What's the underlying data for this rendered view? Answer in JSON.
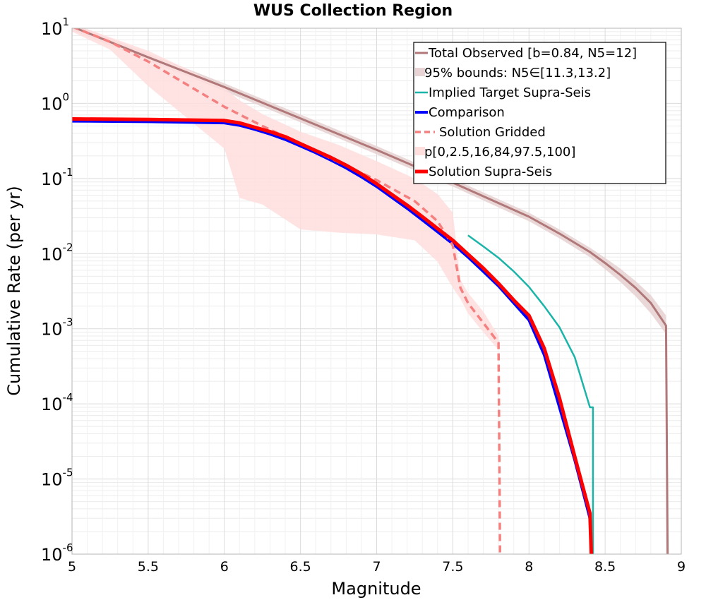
{
  "chart_data": {
    "type": "line",
    "title": "WUS Collection Region",
    "xlabel": "Magnitude",
    "ylabel": "Cumulative Rate (per yr)",
    "xlim": [
      5,
      9
    ],
    "ylim": [
      1e-06,
      10
    ],
    "yscale": "log",
    "grid": true,
    "legend_position": "top-right",
    "x_ticks": [
      "5",
      "5.5",
      "6",
      "6.5",
      "7",
      "7.5",
      "8",
      "8.5",
      "9"
    ],
    "y_ticks": [
      {
        "base": "10",
        "exp": "-6",
        "value": 1e-06
      },
      {
        "base": "10",
        "exp": "-5",
        "value": 1e-05
      },
      {
        "base": "10",
        "exp": "-4",
        "value": 0.0001
      },
      {
        "base": "10",
        "exp": "-3",
        "value": 0.001
      },
      {
        "base": "10",
        "exp": "-2",
        "value": 0.01
      },
      {
        "base": "10",
        "exp": "-1",
        "value": 0.1
      },
      {
        "base": "10",
        "exp": "0",
        "value": 1
      },
      {
        "base": "10",
        "exp": "1",
        "value": 10
      }
    ],
    "series": [
      {
        "name": "Total Observed [b=0.84, N5=12]",
        "color": "#b07878",
        "style": "solid",
        "width": 3,
        "x": [
          5.0,
          5.5,
          6.0,
          6.5,
          7.0,
          7.5,
          8.0,
          8.2,
          8.4,
          8.5,
          8.6,
          8.7,
          8.8,
          8.9,
          8.91,
          8.95
        ],
        "y": [
          10.5,
          4.1,
          1.65,
          0.63,
          0.24,
          0.088,
          0.031,
          0.0185,
          0.0105,
          0.0075,
          0.0052,
          0.0035,
          0.0022,
          0.0011,
          1e-06,
          1e-07
        ]
      },
      {
        "name": "95% bounds: N5∈[11.3,13.2]",
        "color": "#e8d4d4",
        "type": "band",
        "x": [
          5.0,
          5.5,
          6.0,
          6.5,
          7.0,
          7.5,
          8.0,
          8.2,
          8.4,
          8.5,
          8.6,
          8.7,
          8.8,
          8.9
        ],
        "lower": [
          9.4,
          3.7,
          1.45,
          0.56,
          0.21,
          0.078,
          0.027,
          0.016,
          0.009,
          0.0062,
          0.0042,
          0.0027,
          0.0016,
          0.00085
        ],
        "upper": [
          11.6,
          4.6,
          1.85,
          0.71,
          0.27,
          0.099,
          0.035,
          0.021,
          0.012,
          0.0088,
          0.0063,
          0.0043,
          0.0028,
          0.0015
        ]
      },
      {
        "name": "Implied Target Supra-Seis",
        "color": "#1ab4a8",
        "style": "solid",
        "width": 2.5,
        "x": [
          7.6,
          7.7,
          7.8,
          7.9,
          8.0,
          8.1,
          8.2,
          8.3,
          8.4,
          8.42,
          8.42
        ],
        "y": [
          0.0175,
          0.0125,
          0.0088,
          0.0058,
          0.0036,
          0.002,
          0.00105,
          0.00042,
          9e-05,
          9e-05,
          5e-07
        ]
      },
      {
        "name": "Comparison",
        "color": "#0000ff",
        "style": "solid",
        "width": 4,
        "x": [
          5.0,
          5.5,
          6.0,
          6.1,
          6.2,
          6.3,
          6.4,
          6.5,
          6.6,
          6.7,
          6.8,
          6.9,
          7.0,
          7.1,
          7.2,
          7.3,
          7.4,
          7.5,
          7.6,
          7.7,
          7.8,
          7.9,
          8.0,
          8.1,
          8.2,
          8.3,
          8.4,
          8.41,
          8.42
        ],
        "y": [
          0.58,
          0.57,
          0.55,
          0.51,
          0.45,
          0.39,
          0.33,
          0.27,
          0.22,
          0.175,
          0.138,
          0.105,
          0.078,
          0.056,
          0.04,
          0.028,
          0.0195,
          0.0135,
          0.009,
          0.0058,
          0.0037,
          0.0022,
          0.0013,
          0.00045,
          9e-05,
          1.8e-05,
          3e-06,
          9e-07,
          5e-07
        ]
      },
      {
        "name": "Solution Gridded",
        "color": "#f58080",
        "style": "dashed",
        "width": 3.5,
        "x": [
          5.0,
          5.25,
          5.5,
          5.75,
          6.0,
          6.25,
          6.5,
          6.75,
          7.0,
          7.25,
          7.4,
          7.5,
          7.55,
          7.6,
          7.7,
          7.8,
          7.81,
          7.82
        ],
        "y": [
          10.5,
          6.6,
          3.6,
          1.8,
          0.9,
          0.5,
          0.29,
          0.165,
          0.095,
          0.05,
          0.027,
          0.0128,
          0.0035,
          0.0022,
          0.0012,
          0.00065,
          9e-07,
          5e-07
        ]
      },
      {
        "name": "p[0,2.5,16,84,97.5,100]",
        "color": "#ffdede",
        "type": "band",
        "x": [
          5.0,
          5.25,
          5.5,
          5.75,
          6.0,
          6.1,
          6.25,
          6.5,
          6.75,
          7.0,
          7.25,
          7.4,
          7.5,
          7.55,
          7.6,
          7.7,
          7.8
        ],
        "lower": [
          9.0,
          5.2,
          1.7,
          0.65,
          0.25,
          0.055,
          0.045,
          0.021,
          0.019,
          0.018,
          0.015,
          0.0078,
          0.0035,
          0.0025,
          0.0016,
          0.0009,
          0.00052
        ],
        "upper": [
          11.5,
          7.6,
          5.0,
          2.9,
          1.6,
          1.1,
          0.72,
          0.42,
          0.28,
          0.17,
          0.1,
          0.062,
          0.035,
          0.0045,
          0.003,
          0.0017,
          0.0008
        ]
      },
      {
        "name": "Solution Supra-Seis",
        "color": "#ff0000",
        "style": "solid",
        "width": 5,
        "x": [
          5.0,
          5.5,
          6.0,
          6.1,
          6.2,
          6.3,
          6.4,
          6.5,
          6.6,
          6.7,
          6.8,
          6.9,
          7.0,
          7.1,
          7.2,
          7.3,
          7.4,
          7.5,
          7.6,
          7.7,
          7.8,
          7.9,
          8.0,
          8.1,
          8.2,
          8.3,
          8.4,
          8.41,
          8.42
        ],
        "y": [
          0.62,
          0.61,
          0.59,
          0.55,
          0.48,
          0.42,
          0.36,
          0.29,
          0.235,
          0.19,
          0.15,
          0.115,
          0.085,
          0.061,
          0.044,
          0.031,
          0.0215,
          0.015,
          0.0098,
          0.0064,
          0.004,
          0.0024,
          0.0015,
          0.00055,
          0.00012,
          2e-05,
          3.5e-06,
          9e-07,
          5e-07
        ]
      }
    ]
  }
}
